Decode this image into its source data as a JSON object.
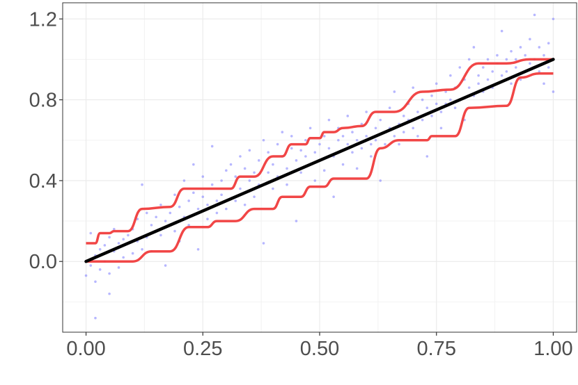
{
  "chart_data": {
    "type": "scatter",
    "title": "",
    "xlabel": "",
    "ylabel": "",
    "xlim": [
      -0.05,
      1.05
    ],
    "ylim": [
      -0.35,
      1.28
    ],
    "x_ticks": [
      "0.00",
      "0.25",
      "0.50",
      "0.75",
      "1.00"
    ],
    "y_ticks": [
      "0.0",
      "0.4",
      "0.8",
      "1.2"
    ],
    "grid": true,
    "legend": "none",
    "colors": {
      "points": "#7b7bff",
      "fit": "#000000",
      "bands": "#f03c3c"
    },
    "series": [
      {
        "kind": "scatter",
        "points": [
          [
            0.0,
            -0.07
          ],
          [
            0.01,
            0.14
          ],
          [
            0.01,
            -0.02
          ],
          [
            0.02,
            0.03
          ],
          [
            0.02,
            -0.1
          ],
          [
            0.02,
            -0.28
          ],
          [
            0.03,
            0.06
          ],
          [
            0.03,
            -0.04
          ],
          [
            0.04,
            0.08
          ],
          [
            0.04,
            0.0
          ],
          [
            0.05,
            0.12
          ],
          [
            0.05,
            -0.06
          ],
          [
            0.05,
            -0.16
          ],
          [
            0.06,
            0.05
          ],
          [
            0.06,
            0.16
          ],
          [
            0.07,
            -0.03
          ],
          [
            0.07,
            0.09
          ],
          [
            0.08,
            0.02
          ],
          [
            0.08,
            0.11
          ],
          [
            0.09,
            0.13
          ],
          [
            0.1,
            0.04
          ],
          [
            0.1,
            0.16
          ],
          [
            0.11,
            0.1
          ],
          [
            0.11,
            0.21
          ],
          [
            0.12,
            0.06
          ],
          [
            0.12,
            0.38
          ],
          [
            0.13,
            0.12
          ],
          [
            0.13,
            0.24
          ],
          [
            0.14,
            0.18
          ],
          [
            0.14,
            0.05
          ],
          [
            0.15,
            0.22
          ],
          [
            0.16,
            0.13
          ],
          [
            0.16,
            0.28
          ],
          [
            0.17,
            -0.02
          ],
          [
            0.17,
            0.2
          ],
          [
            0.18,
            0.24
          ],
          [
            0.19,
            0.15
          ],
          [
            0.19,
            0.33
          ],
          [
            0.2,
            0.27
          ],
          [
            0.2,
            0.1
          ],
          [
            0.21,
            0.22
          ],
          [
            0.21,
            0.4
          ],
          [
            0.22,
            0.3
          ],
          [
            0.22,
            0.18
          ],
          [
            0.23,
            0.34
          ],
          [
            0.23,
            0.48
          ],
          [
            0.24,
            0.26
          ],
          [
            0.24,
            0.06
          ],
          [
            0.25,
            0.32
          ],
          [
            0.25,
            0.42
          ],
          [
            0.26,
            0.28
          ],
          [
            0.26,
            0.21
          ],
          [
            0.27,
            0.38
          ],
          [
            0.27,
            0.57
          ],
          [
            0.28,
            0.3
          ],
          [
            0.28,
            0.24
          ],
          [
            0.29,
            0.4
          ],
          [
            0.29,
            0.33
          ],
          [
            0.3,
            0.45
          ],
          [
            0.3,
            0.26
          ],
          [
            0.31,
            0.36
          ],
          [
            0.31,
            0.48
          ],
          [
            0.32,
            0.3
          ],
          [
            0.32,
            0.42
          ],
          [
            0.33,
            0.52
          ],
          [
            0.33,
            0.36
          ],
          [
            0.34,
            0.28
          ],
          [
            0.34,
            0.46
          ],
          [
            0.35,
            0.4
          ],
          [
            0.35,
            0.55
          ],
          [
            0.36,
            0.32
          ],
          [
            0.36,
            0.44
          ],
          [
            0.37,
            0.5
          ],
          [
            0.37,
            0.38
          ],
          [
            0.38,
            0.6
          ],
          [
            0.38,
            0.09
          ],
          [
            0.39,
            0.44
          ],
          [
            0.39,
            0.54
          ],
          [
            0.4,
            0.48
          ],
          [
            0.4,
            0.36
          ],
          [
            0.41,
            0.58
          ],
          [
            0.41,
            0.42
          ],
          [
            0.42,
            0.52
          ],
          [
            0.42,
            0.64
          ],
          [
            0.43,
            0.46
          ],
          [
            0.43,
            0.38
          ],
          [
            0.44,
            0.56
          ],
          [
            0.44,
            0.62
          ],
          [
            0.45,
            0.5
          ],
          [
            0.45,
            0.2
          ],
          [
            0.46,
            0.55
          ],
          [
            0.46,
            0.44
          ],
          [
            0.47,
            0.6
          ],
          [
            0.47,
            0.52
          ],
          [
            0.48,
            0.48
          ],
          [
            0.48,
            0.66
          ],
          [
            0.49,
            0.54
          ],
          [
            0.49,
            0.4
          ],
          [
            0.5,
            0.58
          ],
          [
            0.5,
            0.5
          ],
          [
            0.51,
            0.62
          ],
          [
            0.51,
            0.45
          ],
          [
            0.52,
            0.56
          ],
          [
            0.52,
            0.7
          ],
          [
            0.53,
            0.52
          ],
          [
            0.53,
            0.32
          ],
          [
            0.54,
            0.6
          ],
          [
            0.54,
            0.66
          ],
          [
            0.55,
            0.48
          ],
          [
            0.55,
            0.62
          ],
          [
            0.56,
            0.58
          ],
          [
            0.56,
            0.72
          ],
          [
            0.57,
            0.54
          ],
          [
            0.57,
            0.64
          ],
          [
            0.58,
            0.6
          ],
          [
            0.58,
            0.46
          ],
          [
            0.59,
            0.68
          ],
          [
            0.59,
            0.56
          ],
          [
            0.6,
            0.62
          ],
          [
            0.6,
            0.74
          ],
          [
            0.61,
            0.58
          ],
          [
            0.61,
            0.52
          ],
          [
            0.62,
            0.66
          ],
          [
            0.62,
            0.6
          ],
          [
            0.63,
            0.7
          ],
          [
            0.63,
            0.4
          ],
          [
            0.64,
            0.64
          ],
          [
            0.64,
            0.58
          ],
          [
            0.65,
            0.76
          ],
          [
            0.65,
            0.66
          ],
          [
            0.66,
            0.62
          ],
          [
            0.66,
            0.84
          ],
          [
            0.67,
            0.68
          ],
          [
            0.67,
            0.58
          ],
          [
            0.68,
            0.72
          ],
          [
            0.68,
            0.64
          ],
          [
            0.69,
            0.78
          ],
          [
            0.69,
            0.7
          ],
          [
            0.7,
            0.66
          ],
          [
            0.7,
            0.86
          ],
          [
            0.71,
            0.74
          ],
          [
            0.71,
            0.62
          ],
          [
            0.72,
            0.8
          ],
          [
            0.72,
            0.7
          ],
          [
            0.73,
            0.76
          ],
          [
            0.73,
            0.52
          ],
          [
            0.74,
            0.82
          ],
          [
            0.74,
            0.72
          ],
          [
            0.75,
            0.78
          ],
          [
            0.75,
            0.88
          ],
          [
            0.76,
            0.74
          ],
          [
            0.76,
            0.66
          ],
          [
            0.77,
            0.84
          ],
          [
            0.77,
            0.78
          ],
          [
            0.78,
            0.8
          ],
          [
            0.78,
            0.92
          ],
          [
            0.79,
            0.76
          ],
          [
            0.79,
            0.86
          ],
          [
            0.8,
            0.96
          ],
          [
            0.8,
            0.8
          ],
          [
            0.81,
            0.9
          ],
          [
            0.81,
            0.7
          ],
          [
            0.82,
            1.0
          ],
          [
            0.82,
            0.86
          ],
          [
            0.83,
            0.82
          ],
          [
            0.83,
            1.06
          ],
          [
            0.84,
            0.92
          ],
          [
            0.84,
            0.88
          ],
          [
            0.85,
            0.96
          ],
          [
            0.85,
            0.84
          ],
          [
            0.86,
            1.0
          ],
          [
            0.86,
            0.9
          ],
          [
            0.87,
            0.94
          ],
          [
            0.87,
            0.86
          ],
          [
            0.88,
            0.98
          ],
          [
            0.88,
            1.02
          ],
          [
            0.89,
            0.92
          ],
          [
            0.89,
            1.14
          ],
          [
            0.9,
            1.0
          ],
          [
            0.9,
            0.94
          ],
          [
            0.91,
            1.04
          ],
          [
            0.91,
            0.88
          ],
          [
            0.92,
            1.0
          ],
          [
            0.92,
            0.96
          ],
          [
            0.93,
            1.06
          ],
          [
            0.93,
            0.9
          ],
          [
            0.94,
            1.02
          ],
          [
            0.95,
            0.98
          ],
          [
            0.95,
            1.1
          ],
          [
            0.96,
            1.22
          ],
          [
            0.96,
            1.0
          ],
          [
            0.97,
            0.94
          ],
          [
            0.97,
            1.06
          ],
          [
            0.98,
            1.02
          ],
          [
            0.98,
            0.88
          ],
          [
            0.99,
            1.08
          ],
          [
            0.99,
            0.96
          ],
          [
            1.0,
            1.2
          ],
          [
            1.0,
            0.84
          ],
          [
            1.0,
            1.0
          ]
        ]
      },
      {
        "kind": "line",
        "role": "fit",
        "points": [
          [
            0.0,
            0.0
          ],
          [
            1.0,
            1.0
          ]
        ]
      },
      {
        "kind": "step",
        "role": "upper",
        "points": [
          [
            0.0,
            0.09
          ],
          [
            0.02,
            0.09
          ],
          [
            0.03,
            0.14
          ],
          [
            0.05,
            0.14
          ],
          [
            0.06,
            0.15
          ],
          [
            0.09,
            0.15
          ],
          [
            0.12,
            0.26
          ],
          [
            0.18,
            0.27
          ],
          [
            0.21,
            0.36
          ],
          [
            0.31,
            0.36
          ],
          [
            0.33,
            0.42
          ],
          [
            0.36,
            0.42
          ],
          [
            0.4,
            0.52
          ],
          [
            0.42,
            0.52
          ],
          [
            0.44,
            0.58
          ],
          [
            0.47,
            0.58
          ],
          [
            0.48,
            0.61
          ],
          [
            0.5,
            0.61
          ],
          [
            0.51,
            0.64
          ],
          [
            0.53,
            0.64
          ],
          [
            0.55,
            0.66
          ],
          [
            0.59,
            0.67
          ],
          [
            0.62,
            0.74
          ],
          [
            0.66,
            0.74
          ],
          [
            0.72,
            0.84
          ],
          [
            0.78,
            0.85
          ],
          [
            0.84,
            0.98
          ],
          [
            0.9,
            0.98
          ],
          [
            0.95,
            1.0
          ],
          [
            1.0,
            1.0
          ]
        ]
      },
      {
        "kind": "step",
        "role": "lower",
        "points": [
          [
            0.0,
            0.0
          ],
          [
            0.1,
            0.0
          ],
          [
            0.14,
            0.05
          ],
          [
            0.18,
            0.05
          ],
          [
            0.22,
            0.17
          ],
          [
            0.26,
            0.17
          ],
          [
            0.28,
            0.2
          ],
          [
            0.32,
            0.2
          ],
          [
            0.36,
            0.26
          ],
          [
            0.4,
            0.26
          ],
          [
            0.42,
            0.32
          ],
          [
            0.46,
            0.32
          ],
          [
            0.48,
            0.37
          ],
          [
            0.51,
            0.37
          ],
          [
            0.53,
            0.41
          ],
          [
            0.6,
            0.41
          ],
          [
            0.63,
            0.56
          ],
          [
            0.67,
            0.6
          ],
          [
            0.73,
            0.6
          ],
          [
            0.74,
            0.62
          ],
          [
            0.79,
            0.62
          ],
          [
            0.82,
            0.76
          ],
          [
            0.9,
            0.77
          ],
          [
            0.93,
            0.91
          ],
          [
            0.97,
            0.93
          ],
          [
            1.0,
            0.93
          ]
        ]
      }
    ]
  }
}
